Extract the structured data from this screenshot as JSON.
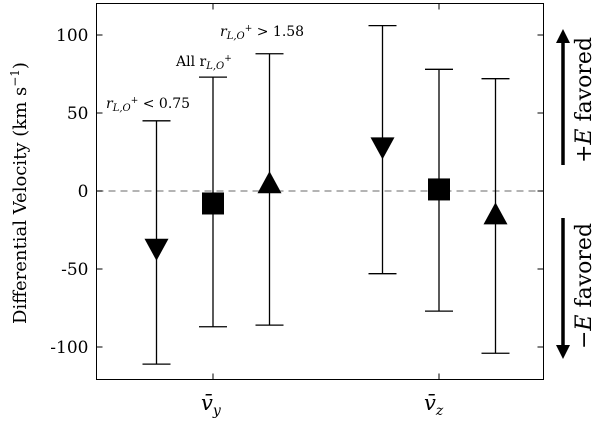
{
  "chart_data": {
    "type": "errorbar",
    "ylabel": "Differential Velocity (km s",
    "ylabel_sup": "−1",
    "ylabel_close": ")",
    "ylim": [
      -120,
      120
    ],
    "yticks": [
      100,
      50,
      0,
      -50,
      -100
    ],
    "ytick_labels": [
      "100",
      "50",
      "0",
      "-50",
      "-100"
    ],
    "reference_line": 0,
    "groups": [
      {
        "name": "v̄",
        "subscript": "y",
        "x": 1
      },
      {
        "name": "v̄",
        "subscript": "z",
        "x": 2
      }
    ],
    "series": [
      {
        "marker": "triangle-down",
        "label_prefix": "r",
        "label_sub": "L,O",
        "label_sup": "+",
        "label_suffix": " < 0.75",
        "points": [
          {
            "group": "y",
            "x": 0.75,
            "y": -37,
            "low": -111,
            "high": 45
          },
          {
            "group": "z",
            "x": 1.75,
            "y": 28,
            "low": -53,
            "high": 106
          }
        ]
      },
      {
        "marker": "square",
        "label_prefix": "All r",
        "label_sub": "L,O",
        "label_sup": "+",
        "label_suffix": "",
        "points": [
          {
            "group": "y",
            "x": 1.0,
            "y": -8,
            "low": -87,
            "high": 73
          },
          {
            "group": "z",
            "x": 2.0,
            "y": 1,
            "low": -77,
            "high": 78
          }
        ]
      },
      {
        "marker": "triangle-up",
        "label_prefix": "r",
        "label_sub": "L,O",
        "label_sup": "+",
        "label_suffix": " > 1.58",
        "points": [
          {
            "group": "y",
            "x": 1.25,
            "y": 5,
            "low": -86,
            "high": 88
          },
          {
            "group": "z",
            "x": 2.25,
            "y": -15,
            "low": -104,
            "high": 72
          }
        ]
      }
    ],
    "side_annotations": [
      {
        "sign": "+",
        "var": "E",
        "text": " favored",
        "direction": "up"
      },
      {
        "sign": "−",
        "var": "E",
        "text": " favored",
        "direction": "down"
      }
    ]
  }
}
